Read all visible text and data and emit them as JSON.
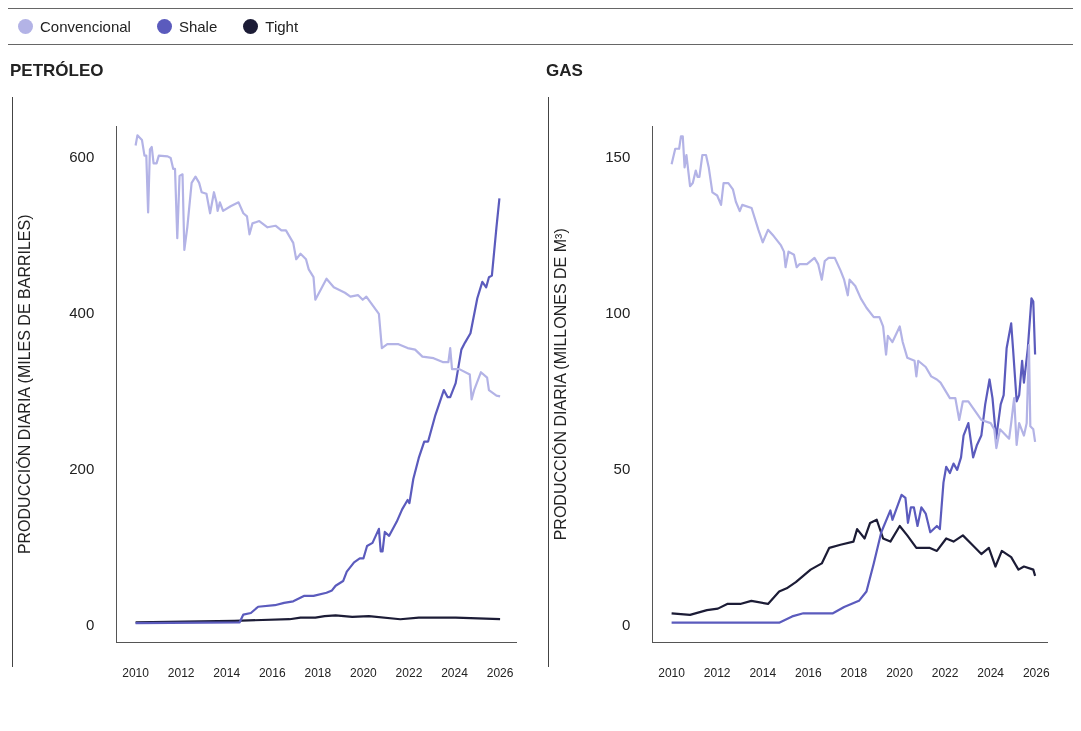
{
  "chart_data": [
    {
      "type": "line",
      "title": "PETRÓLEO",
      "ylabel": "PRODUCCIÓN DIARIA (MILES DE BARRILES)",
      "legend": "top left",
      "marker": "none",
      "line_style": "solid",
      "grid": false,
      "xlim": [
        2009.15,
        2026.7
      ],
      "xticks": [
        2010,
        2012,
        2014,
        2016,
        2018,
        2020,
        2022,
        2024,
        2026
      ],
      "ylim": [
        -22,
        641
      ],
      "yticks": [
        0,
        200,
        400,
        600
      ],
      "series": [
        {
          "name": "Convencional",
          "color": "#b3b3e6",
          "x": [
            2010.0,
            2010.08,
            2010.28,
            2010.39,
            2010.47,
            2010.55,
            2010.63,
            2010.71,
            2010.79,
            2010.92,
            2011.02,
            2011.41,
            2011.54,
            2011.65,
            2011.73,
            2011.83,
            2011.93,
            2012.06,
            2012.14,
            2012.27,
            2012.46,
            2012.63,
            2012.79,
            2012.9,
            2013.11,
            2013.27,
            2013.44,
            2013.55,
            2013.6,
            2013.7,
            2013.84,
            2014.17,
            2014.52,
            2014.73,
            2014.89,
            2015.0,
            2015.13,
            2015.43,
            2015.79,
            2016.14,
            2016.4,
            2016.6,
            2016.92,
            2017.05,
            2017.24,
            2017.48,
            2017.6,
            2017.81,
            2017.89,
            2018.09,
            2018.38,
            2018.7,
            2019.19,
            2019.43,
            2019.76,
            2019.97,
            2020.13,
            2020.4,
            2020.68,
            2020.81,
            2021.05,
            2021.54,
            2021.94,
            2022.27,
            2022.59,
            2023.08,
            2023.48,
            2023.73,
            2023.81,
            2023.89,
            2024.21,
            2024.67,
            2024.75,
            2024.86,
            2025.16,
            2025.43,
            2025.51,
            2025.84,
            2026.0
          ],
          "values": [
            616,
            629,
            623,
            603,
            603,
            530,
            611,
            614,
            593,
            593,
            603,
            602,
            600,
            586,
            586,
            497,
            577,
            579,
            482,
            511,
            568,
            576,
            568,
            556,
            554,
            529,
            556,
            543,
            532,
            543,
            532,
            538,
            543,
            529,
            525,
            502,
            516,
            519,
            511,
            513,
            507,
            507,
            491,
            470,
            477,
            470,
            457,
            447,
            418,
            429,
            445,
            434,
            427,
            422,
            424,
            418,
            422,
            411,
            400,
            356,
            361,
            361,
            356,
            354,
            345,
            343,
            338,
            338,
            356,
            329,
            329,
            322,
            290,
            302,
            325,
            318,
            302,
            295,
            294
          ]
        },
        {
          "name": "Shale",
          "color": "#5b5bbd",
          "x": [
            2010,
            2014.57,
            2014.73,
            2015.06,
            2015.38,
            2016.11,
            2016.52,
            2016.92,
            2017.41,
            2017.81,
            2018.38,
            2018.62,
            2018.78,
            2019.11,
            2019.27,
            2019.59,
            2019.84,
            2020,
            2020.16,
            2020.4,
            2020.68,
            2020.76,
            2020.84,
            2020.94,
            2021.13,
            2021.46,
            2021.7,
            2021.94,
            2022.02,
            2022.19,
            2022.43,
            2022.67,
            2022.84,
            2023.16,
            2023.53,
            2023.7,
            2023.81,
            2024.05,
            2024.3,
            2024.46,
            2024.7,
            2025,
            2025.22,
            2025.39,
            2025.51,
            2025.64,
            2025.84,
            2025.97
          ],
          "values": [
            3,
            4,
            14,
            16,
            24,
            26,
            29,
            31,
            38,
            38,
            42,
            45,
            51,
            57,
            69,
            81,
            86,
            86,
            102,
            106,
            124,
            95,
            95,
            120,
            115,
            133,
            149,
            161,
            157,
            188,
            215,
            236,
            236,
            270,
            302,
            293,
            293,
            311,
            354,
            363,
            375,
            420,
            441,
            434,
            447,
            449,
            511,
            548
          ]
        },
        {
          "name": "Tight",
          "color": "#1c1c36",
          "x": [
            2010,
            2014.33,
            2016.76,
            2017.24,
            2017.89,
            2018.3,
            2018.78,
            2019.51,
            2020.24,
            2021.62,
            2022.43,
            2024.05,
            2026
          ],
          "values": [
            4,
            6,
            8,
            10,
            10,
            12,
            13,
            11,
            12,
            8,
            10,
            10,
            8
          ]
        }
      ]
    },
    {
      "type": "line",
      "title": "GAS",
      "ylabel": "PRODUCCIÓN DIARIA (MILLONES DE M³)",
      "marker": "none",
      "line_style": "solid",
      "grid": false,
      "xlim": [
        2009.15,
        2026.5
      ],
      "xticks": [
        2010,
        2012,
        2014,
        2016,
        2018,
        2020,
        2022,
        2024,
        2026
      ],
      "ylim": [
        -5.4,
        160.3
      ],
      "yticks": [
        0,
        50,
        100,
        150
      ],
      "series": [
        {
          "color": "#b3b3e6",
          "x": [
            2010,
            2010.16,
            2010.33,
            2010.41,
            2010.49,
            2010.57,
            2010.65,
            2010.81,
            2010.93,
            2011.06,
            2011.14,
            2011.22,
            2011.35,
            2011.51,
            2011.63,
            2011.79,
            2012,
            2012.17,
            2012.28,
            2012.49,
            2012.69,
            2012.82,
            2012.99,
            2013.1,
            2013.51,
            2013.81,
            2014.0,
            2014.23,
            2014.48,
            2014.8,
            2014.93,
            2015,
            2015.13,
            2015.37,
            2015.49,
            2015.62,
            2015.94,
            2016.27,
            2016.43,
            2016.59,
            2016.72,
            2016.89,
            2017.16,
            2017.41,
            2017.57,
            2017.73,
            2017.81,
            2018.06,
            2018.3,
            2018.55,
            2018.87,
            2019.12,
            2019.28,
            2019.41,
            2019.49,
            2019.69,
            2020.01,
            2020.14,
            2020.34,
            2020.66,
            2020.74,
            2020.82,
            2021.15,
            2021.39,
            2021.64,
            2021.8,
            2022.21,
            2022.45,
            2022.62,
            2022.78,
            2023.02,
            2023.59,
            2024,
            2024.16,
            2024.25,
            2024.41,
            2024.81,
            2024.9,
            2025.03,
            2025.14,
            2025.25,
            2025.46,
            2025.58,
            2025.68,
            2025.74,
            2025.87,
            2025.95
          ],
          "values": [
            148,
            153,
            153,
            157,
            157,
            147,
            151,
            141,
            142,
            146,
            144,
            144,
            151,
            151,
            147,
            139,
            138,
            135,
            142,
            142,
            140,
            136,
            133,
            135,
            134,
            127,
            123,
            127,
            125,
            122,
            120,
            115,
            120,
            119,
            115,
            116,
            116,
            118,
            116,
            111,
            117,
            118,
            118,
            114,
            111,
            106,
            111,
            109,
            105,
            102,
            99,
            99,
            96,
            87,
            93,
            91,
            96,
            91,
            86,
            85,
            80,
            85,
            83,
            80,
            79,
            78,
            73,
            73,
            66,
            72,
            72,
            66,
            65,
            63,
            57,
            63,
            60,
            65,
            73,
            58,
            65,
            61,
            65,
            90,
            64,
            63,
            59
          ]
        },
        {
          "color": "#5b5bbd",
          "x": [
            2010,
            2014.72,
            2015.29,
            2015.78,
            2016.43,
            2017.08,
            2017.57,
            2018.22,
            2018.55,
            2018.87,
            2019.2,
            2019.6,
            2019.69,
            2020.09,
            2020.26,
            2020.37,
            2020.5,
            2020.63,
            2020.79,
            2020.96,
            2021.15,
            2021.35,
            2021.64,
            2021.77,
            2021.93,
            2022.05,
            2022.21,
            2022.37,
            2022.53,
            2022.7,
            2022.81,
            2023.02,
            2023.23,
            2023.4,
            2023.59,
            2023.76,
            2023.95,
            2024.08,
            2024.24,
            2024.44,
            2024.57,
            2024.7,
            2024.9,
            2024.98,
            2025.14,
            2025.25,
            2025.38,
            2025.46,
            2025.63,
            2025.79,
            2025.87,
            2025.95
          ],
          "values": [
            1,
            1,
            3,
            4,
            4,
            4,
            6,
            8,
            11,
            20,
            30,
            37,
            34,
            42,
            41,
            33,
            38,
            38,
            32,
            38,
            36,
            30,
            32,
            31,
            46,
            51,
            49,
            52,
            50,
            54,
            61,
            65,
            54,
            58,
            61,
            71,
            79,
            73,
            60,
            71,
            74,
            89,
            97,
            89,
            72,
            74,
            85,
            78,
            89,
            105,
            104,
            87
          ]
        },
        {
          "color": "#1c1c36",
          "x": [
            2010,
            2010.81,
            2011.55,
            2012.03,
            2012.44,
            2013.01,
            2013.5,
            2014.23,
            2014.72,
            2015.05,
            2015.45,
            2016.1,
            2016.59,
            2016.92,
            2017.41,
            2017.98,
            2018.14,
            2018.47,
            2018.71,
            2019,
            2019.28,
            2019.6,
            2020.01,
            2020.34,
            2020.74,
            2021.31,
            2021.64,
            2022.05,
            2022.37,
            2022.78,
            2023.19,
            2023.59,
            2023.92,
            2024.21,
            2024.49,
            2024.9,
            2025.22,
            2025.46,
            2025.87,
            2025.95
          ],
          "values": [
            4,
            3.5,
            5,
            5.5,
            7,
            7,
            8,
            7,
            11,
            12,
            14,
            18,
            20,
            25,
            26,
            27,
            31,
            28,
            33,
            34,
            28,
            27,
            32,
            29,
            25,
            25,
            24,
            28,
            27,
            29,
            26,
            23,
            25,
            19,
            24,
            22,
            18,
            19,
            18,
            16
          ]
        }
      ]
    }
  ]
}
